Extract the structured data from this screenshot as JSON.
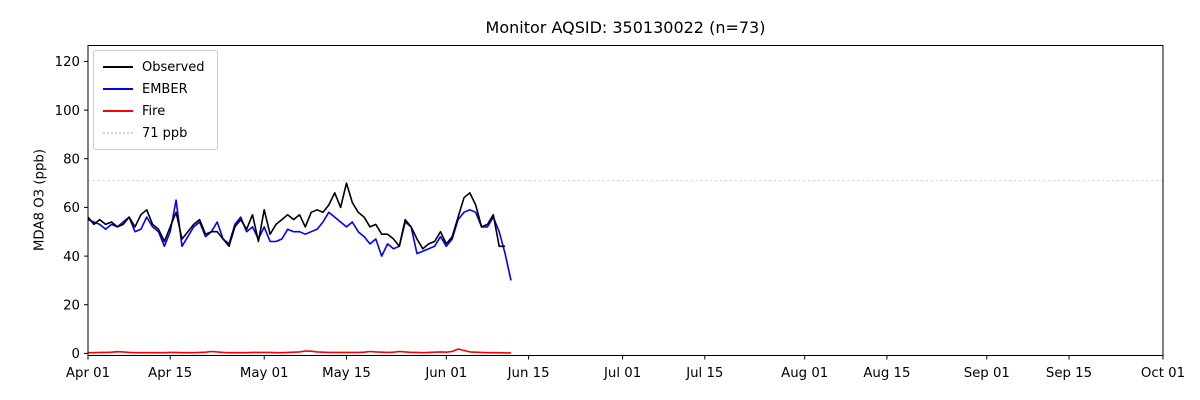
{
  "title": "Monitor AQSID: 350130022 (n=73)",
  "ylabel": "MDA8 O3 (ppb)",
  "colors": {
    "observed": "#000000",
    "ember": "#0000ff",
    "fire": "#ff0000",
    "threshold": "#d3d3d3",
    "axis": "#000000",
    "background": "#ffffff"
  },
  "legend": [
    {
      "label": "Observed",
      "color": "#000000",
      "style": "solid"
    },
    {
      "label": "EMBER",
      "color": "#0000ff",
      "style": "solid"
    },
    {
      "label": "Fire",
      "color": "#ff0000",
      "style": "solid"
    },
    {
      "label": "71 ppb",
      "color": "#d3d3d3",
      "style": "dotted"
    }
  ],
  "chart_data": {
    "type": "line",
    "title": "Monitor AQSID: 350130022 (n=73)",
    "xlabel": "",
    "ylabel": "MDA8 O3 (ppb)",
    "ylim": [
      0,
      126.6
    ],
    "yticks": [
      0,
      20,
      40,
      60,
      80,
      100,
      120
    ],
    "x_ticks": [
      {
        "day": 0,
        "label": "Apr 01"
      },
      {
        "day": 14,
        "label": "Apr 15"
      },
      {
        "day": 30,
        "label": "May 01"
      },
      {
        "day": 44,
        "label": "May 15"
      },
      {
        "day": 61,
        "label": "Jun 01"
      },
      {
        "day": 75,
        "label": "Jun 15"
      },
      {
        "day": 91,
        "label": "Jul 01"
      },
      {
        "day": 105,
        "label": "Jul 15"
      },
      {
        "day": 122,
        "label": "Aug 01"
      },
      {
        "day": 136,
        "label": "Aug 15"
      },
      {
        "day": 153,
        "label": "Sep 01"
      },
      {
        "day": 167,
        "label": "Sep 15"
      },
      {
        "day": 183,
        "label": "Oct 01"
      }
    ],
    "x_range_days": [
      0,
      183
    ],
    "threshold": {
      "value": 71,
      "label": "71 ppb",
      "color": "#d3d3d3",
      "style": "dotted"
    },
    "grid": false,
    "legend_position": "upper left",
    "dates": [
      "Apr 01",
      "Apr 02",
      "Apr 03",
      "Apr 04",
      "Apr 05",
      "Apr 06",
      "Apr 07",
      "Apr 08",
      "Apr 09",
      "Apr 10",
      "Apr 11",
      "Apr 12",
      "Apr 13",
      "Apr 14",
      "Apr 15",
      "Apr 16",
      "Apr 17",
      "Apr 18",
      "Apr 19",
      "Apr 20",
      "Apr 21",
      "Apr 22",
      "Apr 23",
      "Apr 24",
      "Apr 25",
      "Apr 26",
      "Apr 27",
      "Apr 28",
      "Apr 29",
      "Apr 30",
      "May 01",
      "May 02",
      "May 03",
      "May 04",
      "May 05",
      "May 06",
      "May 07",
      "May 08",
      "May 09",
      "May 10",
      "May 11",
      "May 12",
      "May 13",
      "May 14",
      "May 15",
      "May 16",
      "May 17",
      "May 18",
      "May 19",
      "May 20",
      "May 21",
      "May 22",
      "May 23",
      "May 24",
      "May 25",
      "May 26",
      "May 27",
      "May 28",
      "May 29",
      "May 30",
      "May 31",
      "Jun 01",
      "Jun 02",
      "Jun 03",
      "Jun 04",
      "Jun 05",
      "Jun 06",
      "Jun 07",
      "Jun 08",
      "Jun 09",
      "Jun 10",
      "Jun 11",
      "Jun 12"
    ],
    "series": [
      {
        "name": "Observed",
        "color": "#000000",
        "values": [
          56,
          53,
          55,
          53,
          54,
          52,
          53,
          56,
          52,
          57,
          59,
          53,
          51,
          46,
          52,
          58,
          47,
          50,
          53,
          55,
          49,
          50,
          50,
          47,
          44,
          52,
          55,
          51,
          57,
          46,
          59,
          49,
          53,
          55,
          57,
          55,
          57,
          52,
          58,
          59,
          58,
          61,
          66,
          60,
          70,
          62,
          58,
          56,
          52,
          53,
          49,
          49,
          47,
          44,
          55,
          52,
          47,
          43,
          45,
          46,
          50,
          45,
          48,
          56,
          64,
          66,
          61,
          52,
          53,
          57,
          44,
          44,
          null
        ]
      },
      {
        "name": "EMBER",
        "color": "#0000ff",
        "values": [
          55,
          54,
          53,
          51,
          53,
          52,
          54,
          56,
          50,
          51,
          56,
          52,
          50,
          44,
          50,
          63,
          44,
          48,
          52,
          54,
          48,
          50,
          54,
          47,
          45,
          53,
          56,
          50,
          52,
          47,
          52,
          46,
          46,
          47,
          51,
          50,
          50,
          49,
          50,
          51,
          54,
          58,
          56,
          54,
          52,
          54,
          50,
          48,
          45,
          47,
          40,
          45,
          43,
          44,
          54,
          52,
          41,
          42,
          43,
          44,
          48,
          44,
          47,
          55,
          58,
          59,
          58,
          52,
          52,
          56,
          50,
          41,
          30
        ]
      },
      {
        "name": "Fire",
        "color": "#ff0000",
        "values": [
          0.3,
          0.3,
          0.4,
          0.4,
          0.5,
          0.7,
          0.6,
          0.4,
          0.3,
          0.3,
          0.3,
          0.3,
          0.3,
          0.3,
          0.4,
          0.4,
          0.3,
          0.3,
          0.3,
          0.4,
          0.5,
          0.8,
          0.6,
          0.4,
          0.3,
          0.3,
          0.3,
          0.3,
          0.4,
          0.4,
          0.4,
          0.4,
          0.3,
          0.3,
          0.4,
          0.5,
          0.6,
          1.0,
          0.9,
          0.6,
          0.5,
          0.4,
          0.4,
          0.4,
          0.4,
          0.4,
          0.4,
          0.5,
          0.8,
          0.6,
          0.5,
          0.4,
          0.5,
          0.8,
          0.6,
          0.4,
          0.4,
          0.3,
          0.4,
          0.5,
          0.6,
          0.5,
          0.8,
          1.8,
          1.2,
          0.6,
          0.5,
          0.4,
          0.3,
          0.3,
          0.3,
          0.2,
          0.2
        ]
      }
    ]
  }
}
